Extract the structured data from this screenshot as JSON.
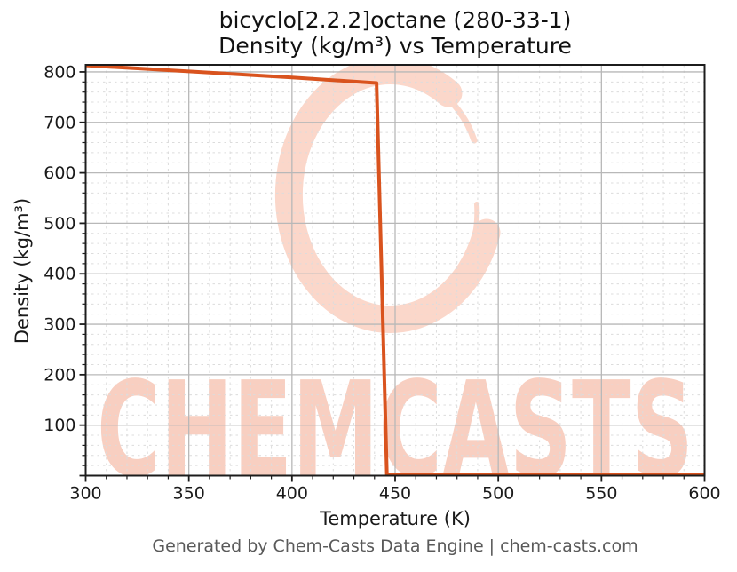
{
  "title": {
    "line1": "bicyclo[2.2.2]octane (280-33-1)",
    "line2": "Density (kg/m³) vs Temperature"
  },
  "footer": "Generated by Chem-Casts Data Engine | chem-casts.com",
  "watermark": {
    "text": "CHEMCASTS",
    "text_color": "#f8cfc1",
    "logo_color": "#fbd7ca"
  },
  "colors": {
    "line": "#d9531e",
    "major_grid": "#b8b8b8",
    "minor_grid": "#dcdcdc",
    "spine": "#1c1c1c",
    "tick_label": "#1a1a1a"
  },
  "chart_data": {
    "type": "line",
    "title": "bicyclo[2.2.2]octane (280-33-1) Density (kg/m³) vs Temperature",
    "xlabel": "Temperature (K)",
    "ylabel": "Density (kg/m³)",
    "xlim": [
      300,
      600
    ],
    "ylim": [
      0,
      814
    ],
    "x_major_ticks": [
      300,
      350,
      400,
      450,
      500,
      550,
      600
    ],
    "y_major_ticks": [
      100,
      200,
      300,
      400,
      500,
      600,
      700,
      800
    ],
    "x_minor_step": 10,
    "y_minor_step": 20,
    "grid": "major-solid + minor-dashed",
    "legend": "none",
    "series": [
      {
        "name": "density",
        "color": "#d9531e",
        "points": [
          [
            300,
            813
          ],
          [
            350,
            801
          ],
          [
            400,
            789
          ],
          [
            441,
            778
          ],
          [
            446,
            2
          ],
          [
            500,
            2
          ],
          [
            550,
            2
          ],
          [
            600,
            2
          ]
        ]
      }
    ]
  }
}
